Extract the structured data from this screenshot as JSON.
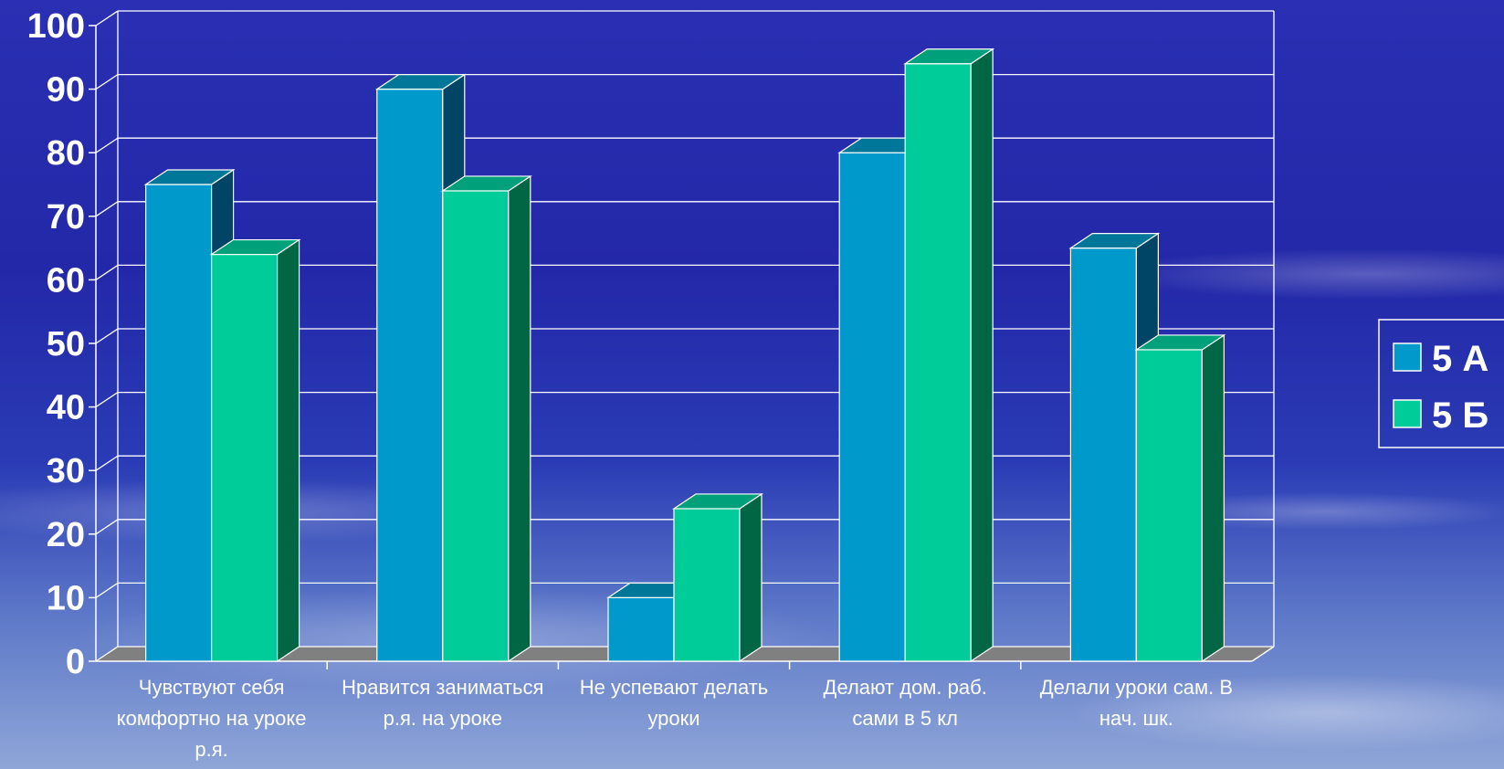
{
  "chart_data": {
    "type": "bar",
    "title": "",
    "xlabel": "",
    "ylabel": "",
    "ylim": [
      0,
      100
    ],
    "yticks": [
      "0",
      "10",
      "20",
      "30",
      "40",
      "50",
      "60",
      "70",
      "80",
      "90",
      "100"
    ],
    "categories": [
      [
        "Чувствуют себя",
        "комфортно на уроке",
        "р.я."
      ],
      [
        "Нравится заниматься",
        "р.я. на уроке"
      ],
      [
        "Не успевают делать",
        "уроки"
      ],
      [
        "Делают дом. раб.",
        "сами в 5 кл"
      ],
      [
        "Делали уроки сам. В",
        "нач. шк."
      ]
    ],
    "series": [
      {
        "name": "5 А",
        "values": [
          75,
          90,
          10,
          80,
          65
        ]
      },
      {
        "name": "5 Б",
        "values": [
          64,
          74,
          24,
          94,
          49
        ]
      }
    ],
    "colors": {
      "series": [
        "#0099cc",
        "#00cc99"
      ],
      "series_side": [
        "#004466",
        "#006644"
      ],
      "series_top": [
        "#007799",
        "#00a07a"
      ],
      "grid": "#ffffff",
      "floor": "#808080"
    },
    "grid": true,
    "legend_position": "right"
  }
}
